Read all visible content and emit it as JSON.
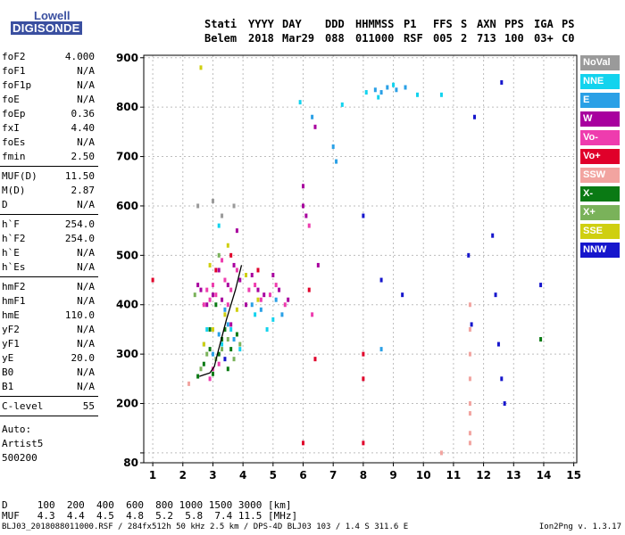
{
  "logo": {
    "line1": "Lowell",
    "line2": "DIGISONDE"
  },
  "header": {
    "labels": [
      "Stati",
      "YYYY",
      "DAY",
      "DDD",
      "HHMMSS",
      "P1",
      "FFS",
      "S",
      "AXN",
      "PPS",
      "IGA",
      "PS"
    ],
    "values": [
      "Belem",
      "2018",
      "Mar29",
      "088",
      "011000",
      "RSF",
      "005",
      "2",
      "713",
      "100",
      "03+",
      "C0"
    ]
  },
  "params_a": [
    {
      "k": "foF2",
      "v": "4.000"
    },
    {
      "k": "foF1",
      "v": "N/A"
    },
    {
      "k": "foF1p",
      "v": "N/A"
    },
    {
      "k": "foE",
      "v": "N/A"
    },
    {
      "k": "foEp",
      "v": "0.36"
    },
    {
      "k": "fxI",
      "v": "4.40"
    },
    {
      "k": "foEs",
      "v": "N/A"
    },
    {
      "k": "fmin",
      "v": "2.50"
    }
  ],
  "params_b": [
    {
      "k": "MUF(D)",
      "v": "11.50"
    },
    {
      "k": "M(D)",
      "v": "2.87"
    },
    {
      "k": "D",
      "v": "N/A"
    }
  ],
  "params_c": [
    {
      "k": "h`F",
      "v": "254.0"
    },
    {
      "k": "h`F2",
      "v": "254.0"
    },
    {
      "k": "h`E",
      "v": "N/A"
    },
    {
      "k": "h`Es",
      "v": "N/A"
    }
  ],
  "params_d": [
    {
      "k": "hmF2",
      "v": "N/A"
    },
    {
      "k": "hmF1",
      "v": "N/A"
    },
    {
      "k": "hmE",
      "v": "110.0"
    },
    {
      "k": "yF2",
      "v": "N/A"
    },
    {
      "k": "yF1",
      "v": "N/A"
    },
    {
      "k": "yE",
      "v": "20.0"
    },
    {
      "k": "B0",
      "v": "N/A"
    },
    {
      "k": "B1",
      "v": "N/A"
    }
  ],
  "params_e": [
    {
      "k": "C-level",
      "v": "55"
    }
  ],
  "auto": [
    "Auto:",
    "Artist5",
    "500200"
  ],
  "legend": [
    {
      "label": "NoVal",
      "color": "#9a9a9a"
    },
    {
      "label": "NNE",
      "color": "#12d3ee"
    },
    {
      "label": "E",
      "color": "#2aa0e6"
    },
    {
      "label": "W",
      "color": "#a8009e"
    },
    {
      "label": "Vo-",
      "color": "#ee3cae"
    },
    {
      "label": "Vo+",
      "color": "#e0002a"
    },
    {
      "label": "SSW",
      "color": "#f2a4a0"
    },
    {
      "label": "X-",
      "color": "#0a7a14"
    },
    {
      "label": "X+",
      "color": "#7ab25a"
    },
    {
      "label": "SSE",
      "color": "#cfcf10"
    },
    {
      "label": "NNW",
      "color": "#1616cc"
    }
  ],
  "footer": {
    "d_row": "D     100  200  400  600  800 1000 1500 3000 [km]",
    "muf_row": "MUF   4.3  4.4  4.5  4.8  5.2  5.8  7.4 11.5 [MHz]",
    "file_line": "BLJ03_2018088011000.RSF / 284fx512h 50 kHz 2.5 km / DPS-4D BLJ03 103 / 1.4 S 311.6 E",
    "version": "Ion2Png v. 1.3.17"
  },
  "chart_data": {
    "type": "scatter",
    "title": "",
    "xlabel": "",
    "ylabel": "",
    "xlim": [
      0.7,
      15.1
    ],
    "ylim": [
      80,
      905
    ],
    "x_ticks": [
      1,
      2,
      3,
      4,
      5,
      6,
      7,
      8,
      9,
      10,
      11,
      12,
      13,
      14,
      15
    ],
    "y_ticks": [
      80,
      100,
      200,
      300,
      400,
      500,
      600,
      700,
      800,
      900
    ],
    "y_tick_labels": [
      "80",
      "",
      "200",
      "300",
      "400",
      "500",
      "600",
      "700",
      "800",
      "900"
    ],
    "grid": true,
    "legend_position": "right",
    "series": [
      {
        "label": "Vo-",
        "color": "#ee3cae",
        "points": [
          [
            2.7,
            400
          ],
          [
            2.8,
            430
          ],
          [
            2.9,
            410
          ],
          [
            3.0,
            440
          ],
          [
            3.1,
            420
          ],
          [
            3.4,
            450
          ],
          [
            3.5,
            400
          ],
          [
            3.6,
            430
          ],
          [
            3.8,
            470
          ],
          [
            4.2,
            430
          ],
          [
            4.4,
            440
          ],
          [
            4.6,
            410
          ],
          [
            4.9,
            420
          ],
          [
            5.1,
            440
          ],
          [
            5.4,
            400
          ],
          [
            3.0,
            270
          ],
          [
            2.9,
            250
          ],
          [
            3.2,
            280
          ],
          [
            6.2,
            560
          ],
          [
            6.3,
            380
          ],
          [
            3.3,
            490
          ]
        ]
      },
      {
        "label": "W",
        "color": "#a8009e",
        "points": [
          [
            2.6,
            430
          ],
          [
            2.8,
            400
          ],
          [
            3.0,
            420
          ],
          [
            3.2,
            470
          ],
          [
            3.3,
            410
          ],
          [
            3.5,
            440
          ],
          [
            3.7,
            480
          ],
          [
            3.9,
            450
          ],
          [
            4.1,
            400
          ],
          [
            4.3,
            460
          ],
          [
            4.5,
            430
          ],
          [
            4.7,
            420
          ],
          [
            5.0,
            460
          ],
          [
            5.2,
            430
          ],
          [
            5.5,
            410
          ],
          [
            6.0,
            640
          ],
          [
            6.0,
            600
          ],
          [
            6.1,
            580
          ],
          [
            6.4,
            760
          ],
          [
            6.5,
            480
          ],
          [
            3.8,
            550
          ],
          [
            2.5,
            440
          ],
          [
            3.6,
            360
          ]
        ]
      },
      {
        "label": "Vo+",
        "color": "#e0002a",
        "points": [
          [
            6.0,
            120
          ],
          [
            6.2,
            430
          ],
          [
            6.4,
            290
          ],
          [
            8.0,
            300
          ],
          [
            8.0,
            250
          ],
          [
            8.0,
            120
          ],
          [
            1.0,
            450
          ],
          [
            3.1,
            470
          ],
          [
            3.6,
            500
          ],
          [
            4.5,
            470
          ]
        ]
      },
      {
        "label": "E",
        "color": "#2aa0e6",
        "points": [
          [
            3.0,
            300
          ],
          [
            3.2,
            340
          ],
          [
            3.5,
            360
          ],
          [
            3.7,
            330
          ],
          [
            4.3,
            400
          ],
          [
            4.6,
            390
          ],
          [
            5.1,
            410
          ],
          [
            5.3,
            380
          ],
          [
            7.0,
            720
          ],
          [
            7.1,
            690
          ],
          [
            8.4,
            835
          ],
          [
            8.6,
            830
          ],
          [
            8.8,
            840
          ],
          [
            9.1,
            835
          ],
          [
            9.4,
            840
          ],
          [
            6.3,
            780
          ],
          [
            8.6,
            310
          ],
          [
            3.4,
            390
          ],
          [
            2.7,
            320
          ]
        ]
      },
      {
        "label": "NNE",
        "color": "#12d3ee",
        "points": [
          [
            2.8,
            350
          ],
          [
            3.3,
            320
          ],
          [
            3.6,
            350
          ],
          [
            3.9,
            310
          ],
          [
            4.4,
            380
          ],
          [
            4.8,
            350
          ],
          [
            5.0,
            370
          ],
          [
            7.3,
            805
          ],
          [
            8.1,
            830
          ],
          [
            8.5,
            820
          ],
          [
            9.0,
            845
          ],
          [
            9.8,
            825
          ],
          [
            10.6,
            825
          ],
          [
            5.9,
            810
          ],
          [
            3.2,
            560
          ]
        ]
      },
      {
        "label": "NNW",
        "color": "#1616cc",
        "points": [
          [
            11.5,
            500
          ],
          [
            11.6,
            360
          ],
          [
            12.3,
            540
          ],
          [
            12.4,
            420
          ],
          [
            12.5,
            320
          ],
          [
            12.6,
            250
          ],
          [
            12.7,
            200
          ],
          [
            11.7,
            780
          ],
          [
            12.6,
            850
          ],
          [
            8.0,
            580
          ],
          [
            8.6,
            450
          ],
          [
            9.3,
            420
          ],
          [
            3.4,
            290
          ],
          [
            13.9,
            440
          ]
        ]
      },
      {
        "label": "X-",
        "color": "#0a7a14",
        "points": [
          [
            2.5,
            255
          ],
          [
            2.7,
            280
          ],
          [
            2.9,
            310
          ],
          [
            3.0,
            260
          ],
          [
            3.2,
            300
          ],
          [
            3.3,
            330
          ],
          [
            3.5,
            270
          ],
          [
            3.4,
            350
          ],
          [
            3.6,
            310
          ],
          [
            3.1,
            400
          ],
          [
            2.9,
            350
          ],
          [
            3.8,
            340
          ],
          [
            13.9,
            330
          ]
        ]
      },
      {
        "label": "X+",
        "color": "#7ab25a",
        "points": [
          [
            2.6,
            270
          ],
          [
            2.8,
            300
          ],
          [
            3.1,
            290
          ],
          [
            3.3,
            310
          ],
          [
            3.5,
            330
          ],
          [
            3.7,
            290
          ],
          [
            3.9,
            320
          ],
          [
            2.4,
            420
          ],
          [
            3.2,
            500
          ]
        ]
      },
      {
        "label": "SSE",
        "color": "#cfcf10",
        "points": [
          [
            2.7,
            320
          ],
          [
            3.0,
            350
          ],
          [
            3.4,
            380
          ],
          [
            3.8,
            390
          ],
          [
            2.9,
            480
          ],
          [
            3.5,
            520
          ],
          [
            4.1,
            460
          ],
          [
            2.6,
            880
          ],
          [
            4.5,
            410
          ]
        ]
      },
      {
        "label": "SSW",
        "color": "#f2a4a0",
        "points": [
          [
            11.55,
            250
          ],
          [
            11.55,
            200
          ],
          [
            11.55,
            300
          ],
          [
            11.55,
            350
          ],
          [
            11.55,
            180
          ],
          [
            11.55,
            140
          ],
          [
            11.55,
            400
          ],
          [
            11.55,
            120
          ],
          [
            2.2,
            240
          ],
          [
            10.6,
            100
          ]
        ]
      },
      {
        "label": "NoVal",
        "color": "#9a9a9a",
        "points": [
          [
            2.5,
            600
          ],
          [
            3.0,
            610
          ],
          [
            3.3,
            580
          ],
          [
            3.7,
            600
          ]
        ]
      }
    ],
    "trace": {
      "label": "profile",
      "color": "#000000",
      "points": [
        [
          2.55,
          255
        ],
        [
          2.7,
          258
        ],
        [
          2.9,
          262
        ],
        [
          3.05,
          275
        ],
        [
          3.15,
          300
        ],
        [
          3.3,
          335
        ],
        [
          3.45,
          370
        ],
        [
          3.6,
          400
        ],
        [
          3.75,
          430
        ],
        [
          3.85,
          455
        ],
        [
          3.95,
          480
        ]
      ]
    }
  }
}
